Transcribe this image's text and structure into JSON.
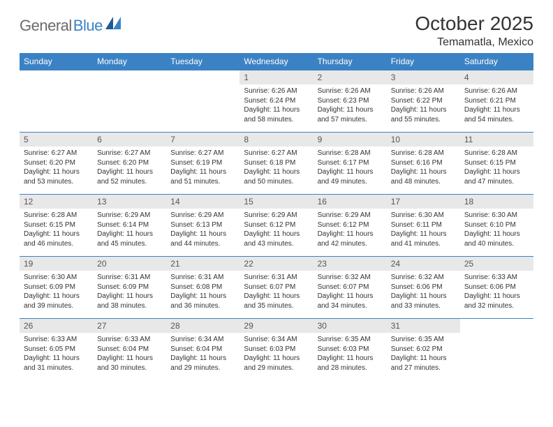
{
  "logo": {
    "gray": "General",
    "blue": "Blue"
  },
  "title": "October 2025",
  "location": "Temamatla, Mexico",
  "day_headers": [
    "Sunday",
    "Monday",
    "Tuesday",
    "Wednesday",
    "Thursday",
    "Friday",
    "Saturday"
  ],
  "colors": {
    "header_bg": "#3b82c4",
    "header_text": "#ffffff",
    "daynum_bg": "#e8e8e8",
    "border": "#3b82c4",
    "logo_gray": "#6b6b6b",
    "logo_blue": "#3b82c4"
  },
  "typography": {
    "title_fontsize": 28,
    "location_fontsize": 16,
    "header_fontsize": 12,
    "cell_fontsize": 10
  },
  "weeks": [
    [
      null,
      null,
      null,
      {
        "num": "1",
        "sunrise": "6:26 AM",
        "sunset": "6:24 PM",
        "daylight": "11 hours and 58 minutes."
      },
      {
        "num": "2",
        "sunrise": "6:26 AM",
        "sunset": "6:23 PM",
        "daylight": "11 hours and 57 minutes."
      },
      {
        "num": "3",
        "sunrise": "6:26 AM",
        "sunset": "6:22 PM",
        "daylight": "11 hours and 55 minutes."
      },
      {
        "num": "4",
        "sunrise": "6:26 AM",
        "sunset": "6:21 PM",
        "daylight": "11 hours and 54 minutes."
      }
    ],
    [
      {
        "num": "5",
        "sunrise": "6:27 AM",
        "sunset": "6:20 PM",
        "daylight": "11 hours and 53 minutes."
      },
      {
        "num": "6",
        "sunrise": "6:27 AM",
        "sunset": "6:20 PM",
        "daylight": "11 hours and 52 minutes."
      },
      {
        "num": "7",
        "sunrise": "6:27 AM",
        "sunset": "6:19 PM",
        "daylight": "11 hours and 51 minutes."
      },
      {
        "num": "8",
        "sunrise": "6:27 AM",
        "sunset": "6:18 PM",
        "daylight": "11 hours and 50 minutes."
      },
      {
        "num": "9",
        "sunrise": "6:28 AM",
        "sunset": "6:17 PM",
        "daylight": "11 hours and 49 minutes."
      },
      {
        "num": "10",
        "sunrise": "6:28 AM",
        "sunset": "6:16 PM",
        "daylight": "11 hours and 48 minutes."
      },
      {
        "num": "11",
        "sunrise": "6:28 AM",
        "sunset": "6:15 PM",
        "daylight": "11 hours and 47 minutes."
      }
    ],
    [
      {
        "num": "12",
        "sunrise": "6:28 AM",
        "sunset": "6:15 PM",
        "daylight": "11 hours and 46 minutes."
      },
      {
        "num": "13",
        "sunrise": "6:29 AM",
        "sunset": "6:14 PM",
        "daylight": "11 hours and 45 minutes."
      },
      {
        "num": "14",
        "sunrise": "6:29 AM",
        "sunset": "6:13 PM",
        "daylight": "11 hours and 44 minutes."
      },
      {
        "num": "15",
        "sunrise": "6:29 AM",
        "sunset": "6:12 PM",
        "daylight": "11 hours and 43 minutes."
      },
      {
        "num": "16",
        "sunrise": "6:29 AM",
        "sunset": "6:12 PM",
        "daylight": "11 hours and 42 minutes."
      },
      {
        "num": "17",
        "sunrise": "6:30 AM",
        "sunset": "6:11 PM",
        "daylight": "11 hours and 41 minutes."
      },
      {
        "num": "18",
        "sunrise": "6:30 AM",
        "sunset": "6:10 PM",
        "daylight": "11 hours and 40 minutes."
      }
    ],
    [
      {
        "num": "19",
        "sunrise": "6:30 AM",
        "sunset": "6:09 PM",
        "daylight": "11 hours and 39 minutes."
      },
      {
        "num": "20",
        "sunrise": "6:31 AM",
        "sunset": "6:09 PM",
        "daylight": "11 hours and 38 minutes."
      },
      {
        "num": "21",
        "sunrise": "6:31 AM",
        "sunset": "6:08 PM",
        "daylight": "11 hours and 36 minutes."
      },
      {
        "num": "22",
        "sunrise": "6:31 AM",
        "sunset": "6:07 PM",
        "daylight": "11 hours and 35 minutes."
      },
      {
        "num": "23",
        "sunrise": "6:32 AM",
        "sunset": "6:07 PM",
        "daylight": "11 hours and 34 minutes."
      },
      {
        "num": "24",
        "sunrise": "6:32 AM",
        "sunset": "6:06 PM",
        "daylight": "11 hours and 33 minutes."
      },
      {
        "num": "25",
        "sunrise": "6:33 AM",
        "sunset": "6:06 PM",
        "daylight": "11 hours and 32 minutes."
      }
    ],
    [
      {
        "num": "26",
        "sunrise": "6:33 AM",
        "sunset": "6:05 PM",
        "daylight": "11 hours and 31 minutes."
      },
      {
        "num": "27",
        "sunrise": "6:33 AM",
        "sunset": "6:04 PM",
        "daylight": "11 hours and 30 minutes."
      },
      {
        "num": "28",
        "sunrise": "6:34 AM",
        "sunset": "6:04 PM",
        "daylight": "11 hours and 29 minutes."
      },
      {
        "num": "29",
        "sunrise": "6:34 AM",
        "sunset": "6:03 PM",
        "daylight": "11 hours and 29 minutes."
      },
      {
        "num": "30",
        "sunrise": "6:35 AM",
        "sunset": "6:03 PM",
        "daylight": "11 hours and 28 minutes."
      },
      {
        "num": "31",
        "sunrise": "6:35 AM",
        "sunset": "6:02 PM",
        "daylight": "11 hours and 27 minutes."
      },
      null
    ]
  ],
  "labels": {
    "sunrise": "Sunrise: ",
    "sunset": "Sunset: ",
    "daylight": "Daylight: "
  }
}
